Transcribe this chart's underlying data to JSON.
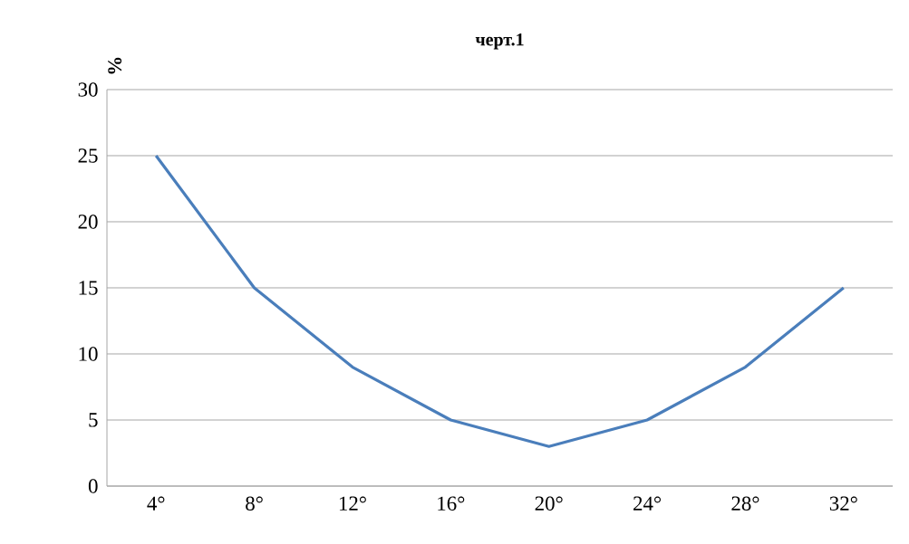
{
  "chart_data": {
    "type": "line",
    "title": "черт.1",
    "ylabel": "%",
    "categories": [
      "4°",
      "8°",
      "12°",
      "16°",
      "20°",
      "24°",
      "28°",
      "32°"
    ],
    "series": [
      {
        "color": "#4a7ebb",
        "values": [
          25,
          15,
          9,
          5,
          3,
          5,
          9,
          15
        ]
      }
    ],
    "ylim": [
      0,
      30
    ],
    "yticks": [
      0,
      5,
      10,
      15,
      20,
      25,
      30
    ],
    "grid": "y",
    "marker": "none",
    "line_style": "solid"
  }
}
